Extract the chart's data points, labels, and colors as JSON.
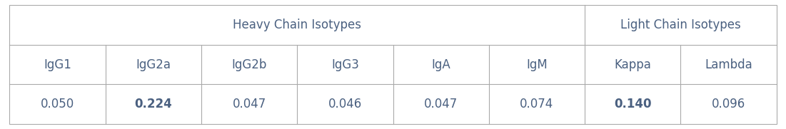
{
  "header_groups": [
    {
      "label": "Heavy Chain Isotypes",
      "col_span": 6
    },
    {
      "label": "Light Chain Isotypes",
      "col_span": 2
    }
  ],
  "subheaders": [
    "IgG1",
    "IgG2a",
    "IgG2b",
    "IgG3",
    "IgA",
    "IgM",
    "Kappa",
    "Lambda"
  ],
  "values": [
    "0.050",
    "0.224",
    "0.047",
    "0.046",
    "0.047",
    "0.074",
    "0.140",
    "0.096"
  ],
  "bold_values": [
    false,
    true,
    false,
    false,
    false,
    false,
    true,
    false
  ],
  "n_cols": 8,
  "heavy_span": 6,
  "light_span": 2,
  "bg_color": "#ffffff",
  "border_color": "#aaaaaa",
  "text_color": "#4a6080",
  "font_size": 12,
  "header_font_size": 12
}
